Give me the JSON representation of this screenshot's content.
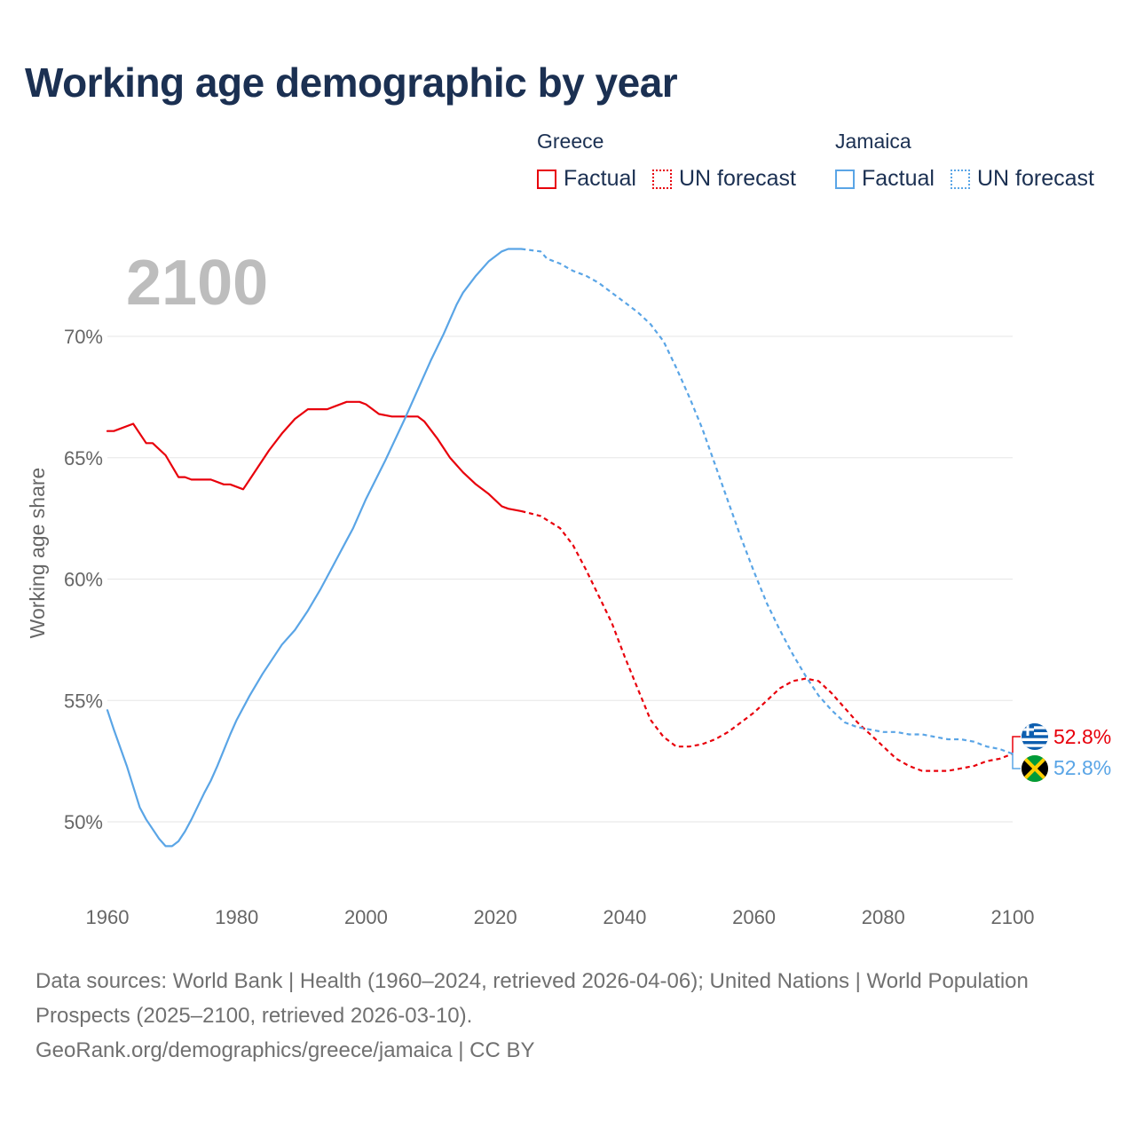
{
  "title": "Working age demographic by year",
  "legend": {
    "greece": {
      "name": "Greece",
      "factual": "Factual",
      "forecast": "UN forecast",
      "color": "#e8000b"
    },
    "jamaica": {
      "name": "Jamaica",
      "factual": "Factual",
      "forecast": "UN forecast",
      "color": "#5aa5e6"
    }
  },
  "year_watermark": "2100",
  "end_labels": {
    "greece": "52.8%",
    "jamaica": "52.8%"
  },
  "footer": {
    "sources": "Data sources: World Bank | Health (1960–2024, retrieved 2026-04-06); United Nations | World Population Prospects (2025–2100, retrieved 2026-03-10).",
    "credit": "GeoRank.org/demographics/greece/jamaica | CC BY"
  },
  "chart_data": {
    "type": "line",
    "title": "Working age demographic by year",
    "xlabel": "",
    "ylabel": "Working age share",
    "xlim": [
      1960,
      2100
    ],
    "ylim": [
      48,
      74
    ],
    "x_ticks": [
      1960,
      1980,
      2000,
      2020,
      2040,
      2060,
      2080,
      2100
    ],
    "x_tick_labels": [
      "1960",
      "1980",
      "2000",
      "2020",
      "2040",
      "2060",
      "2080",
      "2100"
    ],
    "y_ticks": [
      50,
      55,
      60,
      65,
      70
    ],
    "y_tick_labels": [
      "50%",
      "55%",
      "60%",
      "65%",
      "70%"
    ],
    "grid": true,
    "factual_end_year": 2024,
    "series": [
      {
        "name": "Greece",
        "color": "#e8000b",
        "x": [
          1960,
          1961,
          1964,
          1966,
          1967,
          1969,
          1971,
          1972,
          1973,
          1976,
          1978,
          1979,
          1981,
          1982,
          1983,
          1985,
          1987,
          1989,
          1991,
          1994,
          1995,
          1997,
          1999,
          2000,
          2002,
          2004,
          2008,
          2009,
          2011,
          2013,
          2015,
          2017,
          2019,
          2021,
          2022,
          2024,
          2027,
          2030,
          2032,
          2034,
          2036,
          2038,
          2040,
          2042,
          2044,
          2046,
          2048,
          2050,
          2052,
          2054,
          2056,
          2058,
          2060,
          2062,
          2064,
          2066,
          2068,
          2070,
          2072,
          2074,
          2076,
          2078,
          2080,
          2082,
          2084,
          2086,
          2088,
          2090,
          2092,
          2094,
          2096,
          2098,
          2100
        ],
        "values": [
          66.1,
          66.1,
          66.4,
          65.6,
          65.6,
          65.1,
          64.2,
          64.2,
          64.1,
          64.1,
          63.9,
          63.9,
          63.7,
          64.1,
          64.5,
          65.3,
          66.0,
          66.6,
          67.0,
          67.0,
          67.1,
          67.3,
          67.3,
          67.2,
          66.8,
          66.7,
          66.7,
          66.5,
          65.8,
          65.0,
          64.4,
          63.9,
          63.5,
          63.0,
          62.9,
          62.8,
          62.6,
          62.1,
          61.4,
          60.4,
          59.3,
          58.2,
          56.8,
          55.5,
          54.2,
          53.5,
          53.1,
          53.1,
          53.2,
          53.4,
          53.7,
          54.1,
          54.5,
          55.0,
          55.5,
          55.8,
          55.9,
          55.8,
          55.3,
          54.7,
          54.1,
          53.6,
          53.1,
          52.6,
          52.3,
          52.1,
          52.1,
          52.1,
          52.2,
          52.3,
          52.5,
          52.6,
          52.8
        ]
      },
      {
        "name": "Jamaica",
        "color": "#5aa5e6",
        "x": [
          1960,
          1961,
          1963,
          1965,
          1966,
          1968,
          1969,
          1970,
          1971,
          1972,
          1973,
          1975,
          1976,
          1977,
          1979,
          1980,
          1982,
          1984,
          1986,
          1987,
          1989,
          1991,
          1993,
          1995,
          1997,
          1998,
          2000,
          2003,
          2006,
          2008,
          2010,
          2012,
          2014,
          2015,
          2017,
          2019,
          2021,
          2022,
          2024,
          2027,
          2028,
          2030,
          2032,
          2034,
          2036,
          2038,
          2040,
          2042,
          2044,
          2046,
          2048,
          2050,
          2052,
          2054,
          2056,
          2058,
          2060,
          2062,
          2064,
          2066,
          2068,
          2070,
          2072,
          2074,
          2076,
          2078,
          2080,
          2082,
          2084,
          2086,
          2088,
          2090,
          2092,
          2094,
          2096,
          2098,
          2100
        ],
        "values": [
          54.6,
          53.8,
          52.3,
          50.6,
          50.1,
          49.3,
          49.0,
          49.0,
          49.2,
          49.6,
          50.1,
          51.2,
          51.7,
          52.3,
          53.6,
          54.2,
          55.2,
          56.1,
          56.9,
          57.3,
          57.9,
          58.7,
          59.6,
          60.6,
          61.6,
          62.1,
          63.3,
          64.9,
          66.6,
          67.8,
          69.0,
          70.1,
          71.3,
          71.8,
          72.5,
          73.1,
          73.5,
          73.6,
          73.6,
          73.5,
          73.2,
          73.0,
          72.7,
          72.5,
          72.2,
          71.8,
          71.4,
          71.0,
          70.5,
          69.8,
          68.7,
          67.5,
          66.2,
          64.7,
          63.2,
          61.7,
          60.3,
          59.0,
          57.9,
          56.9,
          56.0,
          55.2,
          54.6,
          54.1,
          53.9,
          53.8,
          53.7,
          53.7,
          53.6,
          53.6,
          53.5,
          53.4,
          53.4,
          53.3,
          53.1,
          53.0,
          52.8
        ]
      }
    ]
  }
}
